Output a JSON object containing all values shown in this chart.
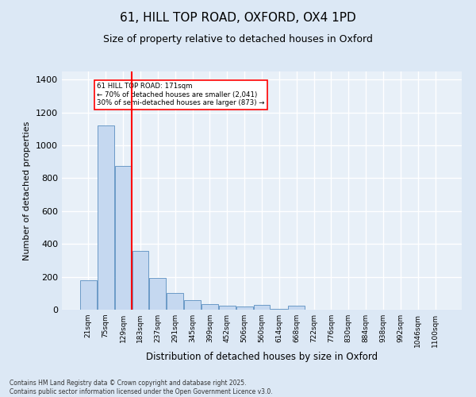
{
  "title_line1": "61, HILL TOP ROAD, OXFORD, OX4 1PD",
  "title_line2": "Size of property relative to detached houses in Oxford",
  "xlabel": "Distribution of detached houses by size in Oxford",
  "ylabel": "Number of detached properties",
  "categories": [
    "21sqm",
    "75sqm",
    "129sqm",
    "183sqm",
    "237sqm",
    "291sqm",
    "345sqm",
    "399sqm",
    "452sqm",
    "506sqm",
    "560sqm",
    "614sqm",
    "668sqm",
    "722sqm",
    "776sqm",
    "830sqm",
    "884sqm",
    "938sqm",
    "992sqm",
    "1046sqm",
    "1100sqm"
  ],
  "values": [
    180,
    1120,
    875,
    360,
    195,
    100,
    60,
    35,
    25,
    20,
    30,
    3,
    25,
    0,
    0,
    0,
    0,
    0,
    0,
    0,
    0
  ],
  "bar_color": "#c5d8f0",
  "bar_edge_color": "#5a8fc0",
  "vline_x": 2.5,
  "vline_color": "red",
  "annotation_text": "61 HILL TOP ROAD: 171sqm\n← 70% of detached houses are smaller (2,041)\n30% of semi-detached houses are larger (873) →",
  "annotation_box_color": "white",
  "annotation_box_edge_color": "red",
  "ylim": [
    0,
    1450
  ],
  "yticks": [
    0,
    200,
    400,
    600,
    800,
    1000,
    1200,
    1400
  ],
  "footer_line1": "Contains HM Land Registry data © Crown copyright and database right 2025.",
  "footer_line2": "Contains public sector information licensed under the Open Government Licence v3.0.",
  "bg_color": "#dce8f5",
  "plot_bg_color": "#e8f0f8"
}
